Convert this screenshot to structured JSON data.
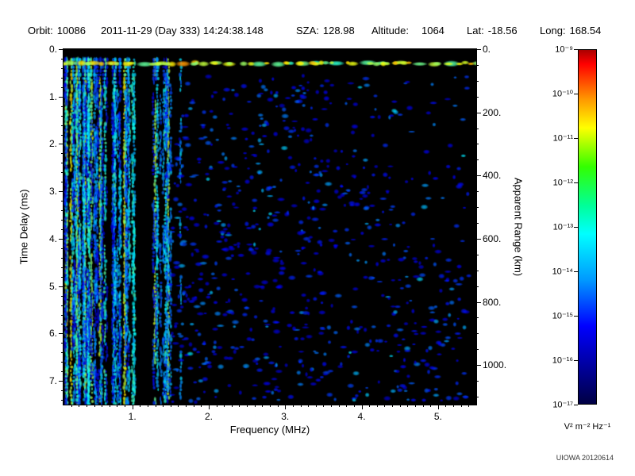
{
  "header": {
    "items": [
      {
        "label": "Orbit:",
        "value": "10086"
      },
      {
        "label": "",
        "value": "2011-11-29 (Day 333) 14:24:38.148"
      },
      {
        "label": "SZA:",
        "value": "128.98"
      },
      {
        "label": "Altitude:",
        "value": "1064"
      },
      {
        "label": "Lat:",
        "value": "-18.56"
      },
      {
        "label": "Long:",
        "value": "168.54"
      }
    ]
  },
  "chart_data": {
    "type": "heatmap",
    "title": "",
    "xlabel": "Frequency (MHz)",
    "ylabel_left": "Time Delay (ms)",
    "ylabel_right": "Apparent Range (km)",
    "xlim": [
      0.1,
      5.5
    ],
    "ylim_ms": [
      0,
      7.5
    ],
    "range_km_per_ms": 150,
    "x_tick_values": [
      1,
      2,
      3,
      4,
      5
    ],
    "x_tick_labels": [
      "1.",
      "2.",
      "3.",
      "4.",
      "5."
    ],
    "x_minor_tick_step_mhz": 0.1,
    "y_left_tick_values_ms": [
      0,
      1,
      2,
      3,
      4,
      5,
      6,
      7
    ],
    "y_left_tick_labels": [
      "0.",
      "1.",
      "2.",
      "3.",
      "4.",
      "5.",
      "6.",
      "7."
    ],
    "y_left_minor_tick_step_ms": 0.2,
    "y_right_tick_values_km": [
      0,
      200,
      400,
      600,
      800,
      1000
    ],
    "y_right_tick_labels": [
      "0.",
      "200.",
      "400.",
      "600.",
      "800.",
      "1000."
    ],
    "y_right_minor_tick_step_km": 50,
    "colorbar": {
      "tick_labels": [
        "10⁻⁹",
        "10⁻¹⁰",
        "10⁻¹¹",
        "10⁻¹²",
        "10⁻¹³",
        "10⁻¹⁴",
        "10⁻¹⁵",
        "10⁻¹⁶",
        "10⁻¹⁷"
      ],
      "unit_label": "V² m⁻² Hz⁻¹",
      "gradient_stops": [
        "#aa0000 0%",
        "#ff0000 4%",
        "#ff9900 14%",
        "#ffff00 22%",
        "#33ff00 33%",
        "#00ff99 44%",
        "#00ffff 52%",
        "#0099ff 65%",
        "#0000ff 78%",
        "#000099 90%",
        "#000044 100%"
      ]
    },
    "spectrogram": {
      "seed": 20120614,
      "background": "#000000",
      "surface_echo_delay_ms": 0.3,
      "stripe_freq_range_mhz": [
        0.12,
        1.65
      ],
      "prominent_stripe_freqs_mhz": [
        0.14,
        0.2,
        0.28,
        0.38,
        0.47,
        0.58,
        0.9,
        1.3,
        1.47
      ],
      "stripe_gap_freqs_mhz": [
        [
          0.68,
          0.74
        ],
        [
          1.04,
          1.26
        ],
        [
          1.52,
          1.6
        ]
      ],
      "stripe_count": 95,
      "scattered": {
        "count": 1150,
        "freq_range_mhz": [
          1.5,
          5.45
        ],
        "delay_range_ms": [
          0.55,
          7.45
        ]
      },
      "bottom_right_cluster": {
        "count": 55,
        "freq_range_mhz": [
          4.4,
          5.4
        ],
        "delay_range_ms": [
          4.8,
          7.45
        ]
      }
    }
  },
  "footer": {
    "credit": "UIOWA 20120614"
  }
}
